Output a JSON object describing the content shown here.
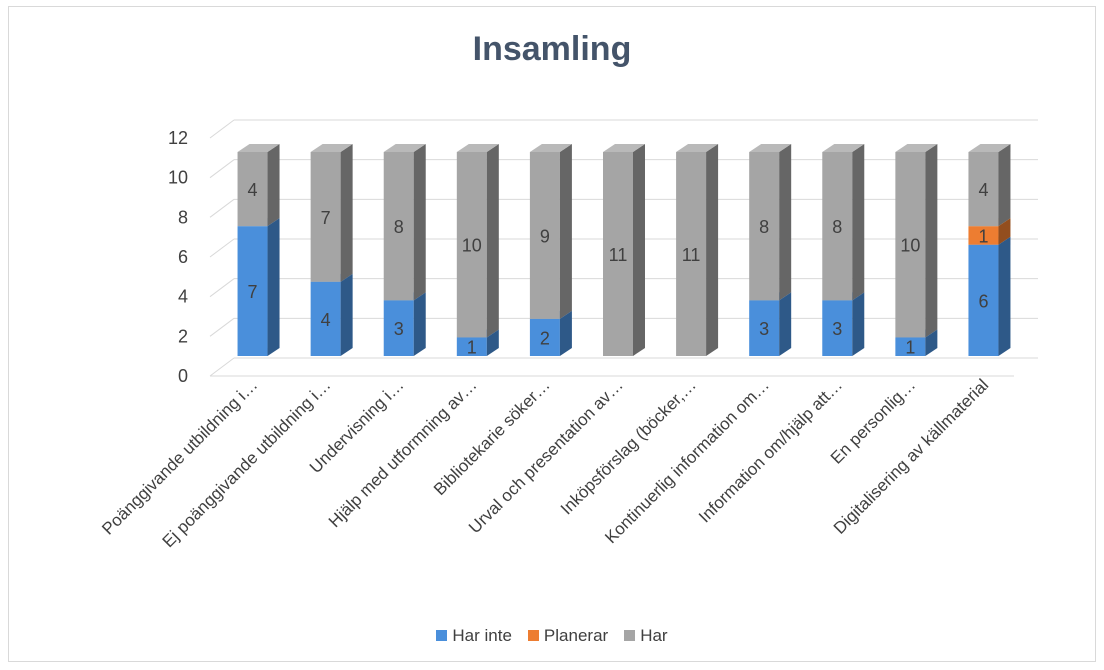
{
  "chart_data": {
    "type": "bar",
    "stacked": true,
    "three_d": true,
    "title": "Insamling",
    "categories": [
      "Poänggivande utbildning i…",
      "Ej poänggivande utbildning i…",
      "Undervisning i…",
      "Hjälp med utformning av…",
      "Bibliotekarie söker…",
      "Urval och presentation av…",
      "Inköpsförslag (böcker,…",
      "Kontinuerlig information om…",
      "Information om/hjälp att…",
      "En personlig…",
      "Digitalisering av källmaterial"
    ],
    "series": [
      {
        "name": "Har inte",
        "color": "#4a8fdb",
        "values": [
          7,
          4,
          3,
          1,
          2,
          0,
          0,
          3,
          3,
          1,
          6
        ]
      },
      {
        "name": "Planerar",
        "color": "#ed7d31",
        "values": [
          0,
          0,
          0,
          0,
          0,
          0,
          0,
          0,
          0,
          0,
          1
        ]
      },
      {
        "name": "Har",
        "color": "#a5a5a5",
        "values": [
          4,
          7,
          8,
          10,
          9,
          11,
          11,
          8,
          8,
          10,
          4
        ]
      }
    ],
    "yticks": [
      0,
      2,
      4,
      6,
      8,
      10,
      12
    ],
    "ylim": [
      0,
      12
    ],
    "grid": true,
    "legend_position": "bottom"
  }
}
